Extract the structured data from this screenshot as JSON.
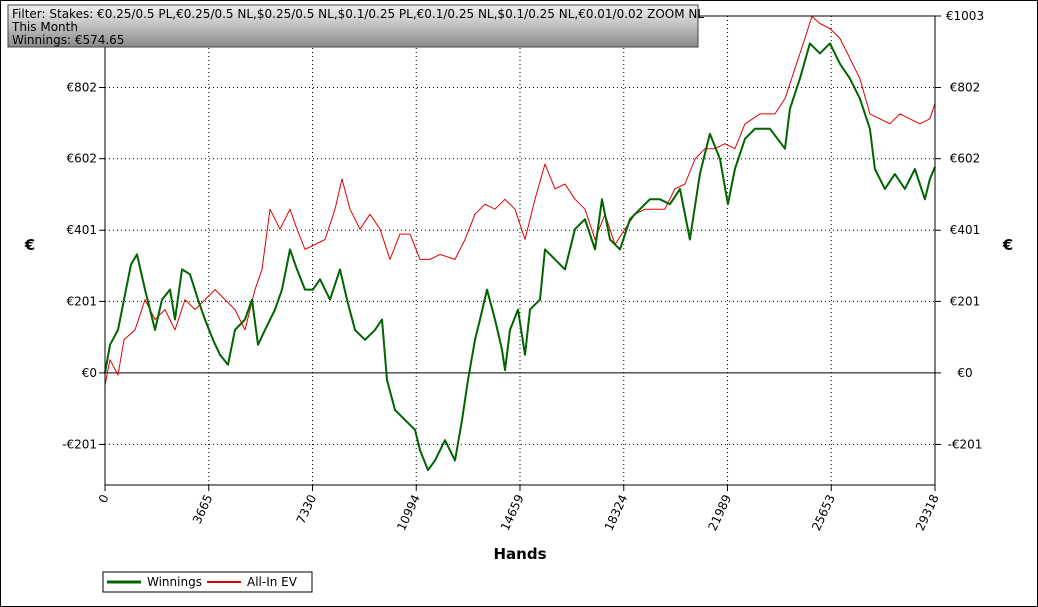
{
  "chart_data": {
    "type": "line",
    "filter_lines": [
      "Filter: Stakes: €0.25/0.5 PL,€0.25/0.5 NL,$0.25/0.5 NL,$0.1/0.25 PL,€0.1/0.25 NL,$0.1/0.25 NL,€0.01/0.02 ZOOM NL",
      "This Month",
      "Winnings: €574.65"
    ],
    "x_label": "Hands",
    "y_label": "€",
    "xlim": [
      0,
      29318
    ],
    "xticks": [
      0,
      3665,
      7330,
      10994,
      14659,
      18324,
      21989,
      25653,
      29318
    ],
    "ylim": [
      -315,
      1003
    ],
    "yticks": [
      {
        "value": -201,
        "label": "-€201"
      },
      {
        "value": 0,
        "label": "€0"
      },
      {
        "value": 201,
        "label": "€201"
      },
      {
        "value": 401,
        "label": "€401"
      },
      {
        "value": 602,
        "label": "€602"
      },
      {
        "value": 802,
        "label": "€802"
      },
      {
        "value": 1003,
        "label": "€1003"
      }
    ],
    "grid": true,
    "legend": "bottom-left",
    "series": [
      {
        "name": "Winnings",
        "color": "#006400",
        "width": 2,
        "x": [
          0,
          177,
          459,
          671,
          918,
          1130,
          1413,
          1589,
          1766,
          2013,
          2296,
          2473,
          2720,
          3002,
          3285,
          3532,
          3815,
          4062,
          4344,
          4592,
          4945,
          5192,
          5404,
          5651,
          6004,
          6252,
          6534,
          6781,
          7064,
          7346,
          7594,
          7947,
          8300,
          8548,
          8830,
          9183,
          9536,
          9784,
          9960,
          10243,
          10596,
          10949,
          11126,
          11408,
          11655,
          12009,
          12362,
          12609,
          12821,
          13068,
          13245,
          13492,
          13775,
          14022,
          14128,
          14305,
          14587,
          14834,
          15011,
          15364,
          15541,
          15894,
          16247,
          16600,
          16954,
          17307,
          17554,
          17837,
          18190,
          18543,
          18896,
          19249,
          19602,
          19956,
          20309,
          20662,
          21015,
          21368,
          21722,
          22004,
          22251,
          22605,
          22958,
          23488,
          24018,
          24194,
          24547,
          24900,
          25254,
          25607,
          25960,
          26313,
          26667,
          27020,
          27196,
          27550,
          27903,
          28256,
          28609,
          28962,
          29139,
          29318
        ],
        "values": [
          0,
          79,
          121,
          206,
          305,
          333,
          234,
          178,
          121,
          206,
          234,
          150,
          291,
          277,
          206,
          150,
          93,
          51,
          23,
          121,
          150,
          206,
          79,
          121,
          178,
          234,
          347,
          291,
          234,
          234,
          263,
          206,
          291,
          206,
          121,
          93,
          121,
          150,
          -20,
          -104,
          -132,
          -160,
          -217,
          -273,
          -246,
          -189,
          -246,
          -133,
          -20,
          93,
          150,
          234,
          150,
          65,
          8,
          121,
          178,
          51,
          178,
          206,
          347,
          319,
          291,
          404,
          432,
          347,
          488,
          375,
          347,
          432,
          460,
          488,
          488,
          474,
          517,
          375,
          559,
          672,
          601,
          474,
          573,
          658,
          686,
          686,
          630,
          742,
          827,
          926,
          898,
          926,
          869,
          827,
          771,
          686,
          573,
          517,
          559,
          517,
          573,
          488,
          545,
          579
        ]
      },
      {
        "name": "All-In EV",
        "color": "#e00000",
        "width": 1,
        "x": [
          0,
          177,
          459,
          671,
          1060,
          1413,
          1766,
          2119,
          2473,
          2826,
          3179,
          3532,
          3885,
          4238,
          4592,
          4945,
          5298,
          5545,
          5828,
          6181,
          6534,
          6781,
          7064,
          7417,
          7770,
          8124,
          8371,
          8653,
          9007,
          9360,
          9713,
          10066,
          10419,
          10773,
          11126,
          11479,
          11832,
          12362,
          12715,
          13068,
          13422,
          13775,
          14128,
          14481,
          14834,
          15188,
          15541,
          15894,
          16247,
          16600,
          16954,
          17307,
          17660,
          18013,
          18366,
          18720,
          19073,
          19426,
          19779,
          20132,
          20486,
          20839,
          21192,
          21545,
          21898,
          22251,
          22605,
          23135,
          23664,
          24018,
          24371,
          24724,
          24971,
          25254,
          25607,
          25960,
          26313,
          26667,
          27020,
          27373,
          27726,
          28079,
          28433,
          28786,
          29139,
          29318
        ],
        "values": [
          -34,
          37,
          -6,
          93,
          121,
          206,
          150,
          178,
          121,
          206,
          178,
          206,
          234,
          206,
          178,
          121,
          234,
          291,
          460,
          404,
          460,
          404,
          347,
          361,
          375,
          460,
          545,
          460,
          404,
          446,
          404,
          319,
          390,
          390,
          319,
          319,
          333,
          319,
          375,
          446,
          474,
          460,
          488,
          460,
          375,
          488,
          587,
          517,
          531,
          488,
          460,
          375,
          446,
          361,
          404,
          446,
          460,
          460,
          460,
          517,
          531,
          601,
          630,
          630,
          644,
          630,
          700,
          728,
          728,
          771,
          855,
          940,
          1002,
          982,
          968,
          940,
          884,
          827,
          728,
          714,
          700,
          728,
          714,
          700,
          714,
          757
        ]
      }
    ]
  }
}
